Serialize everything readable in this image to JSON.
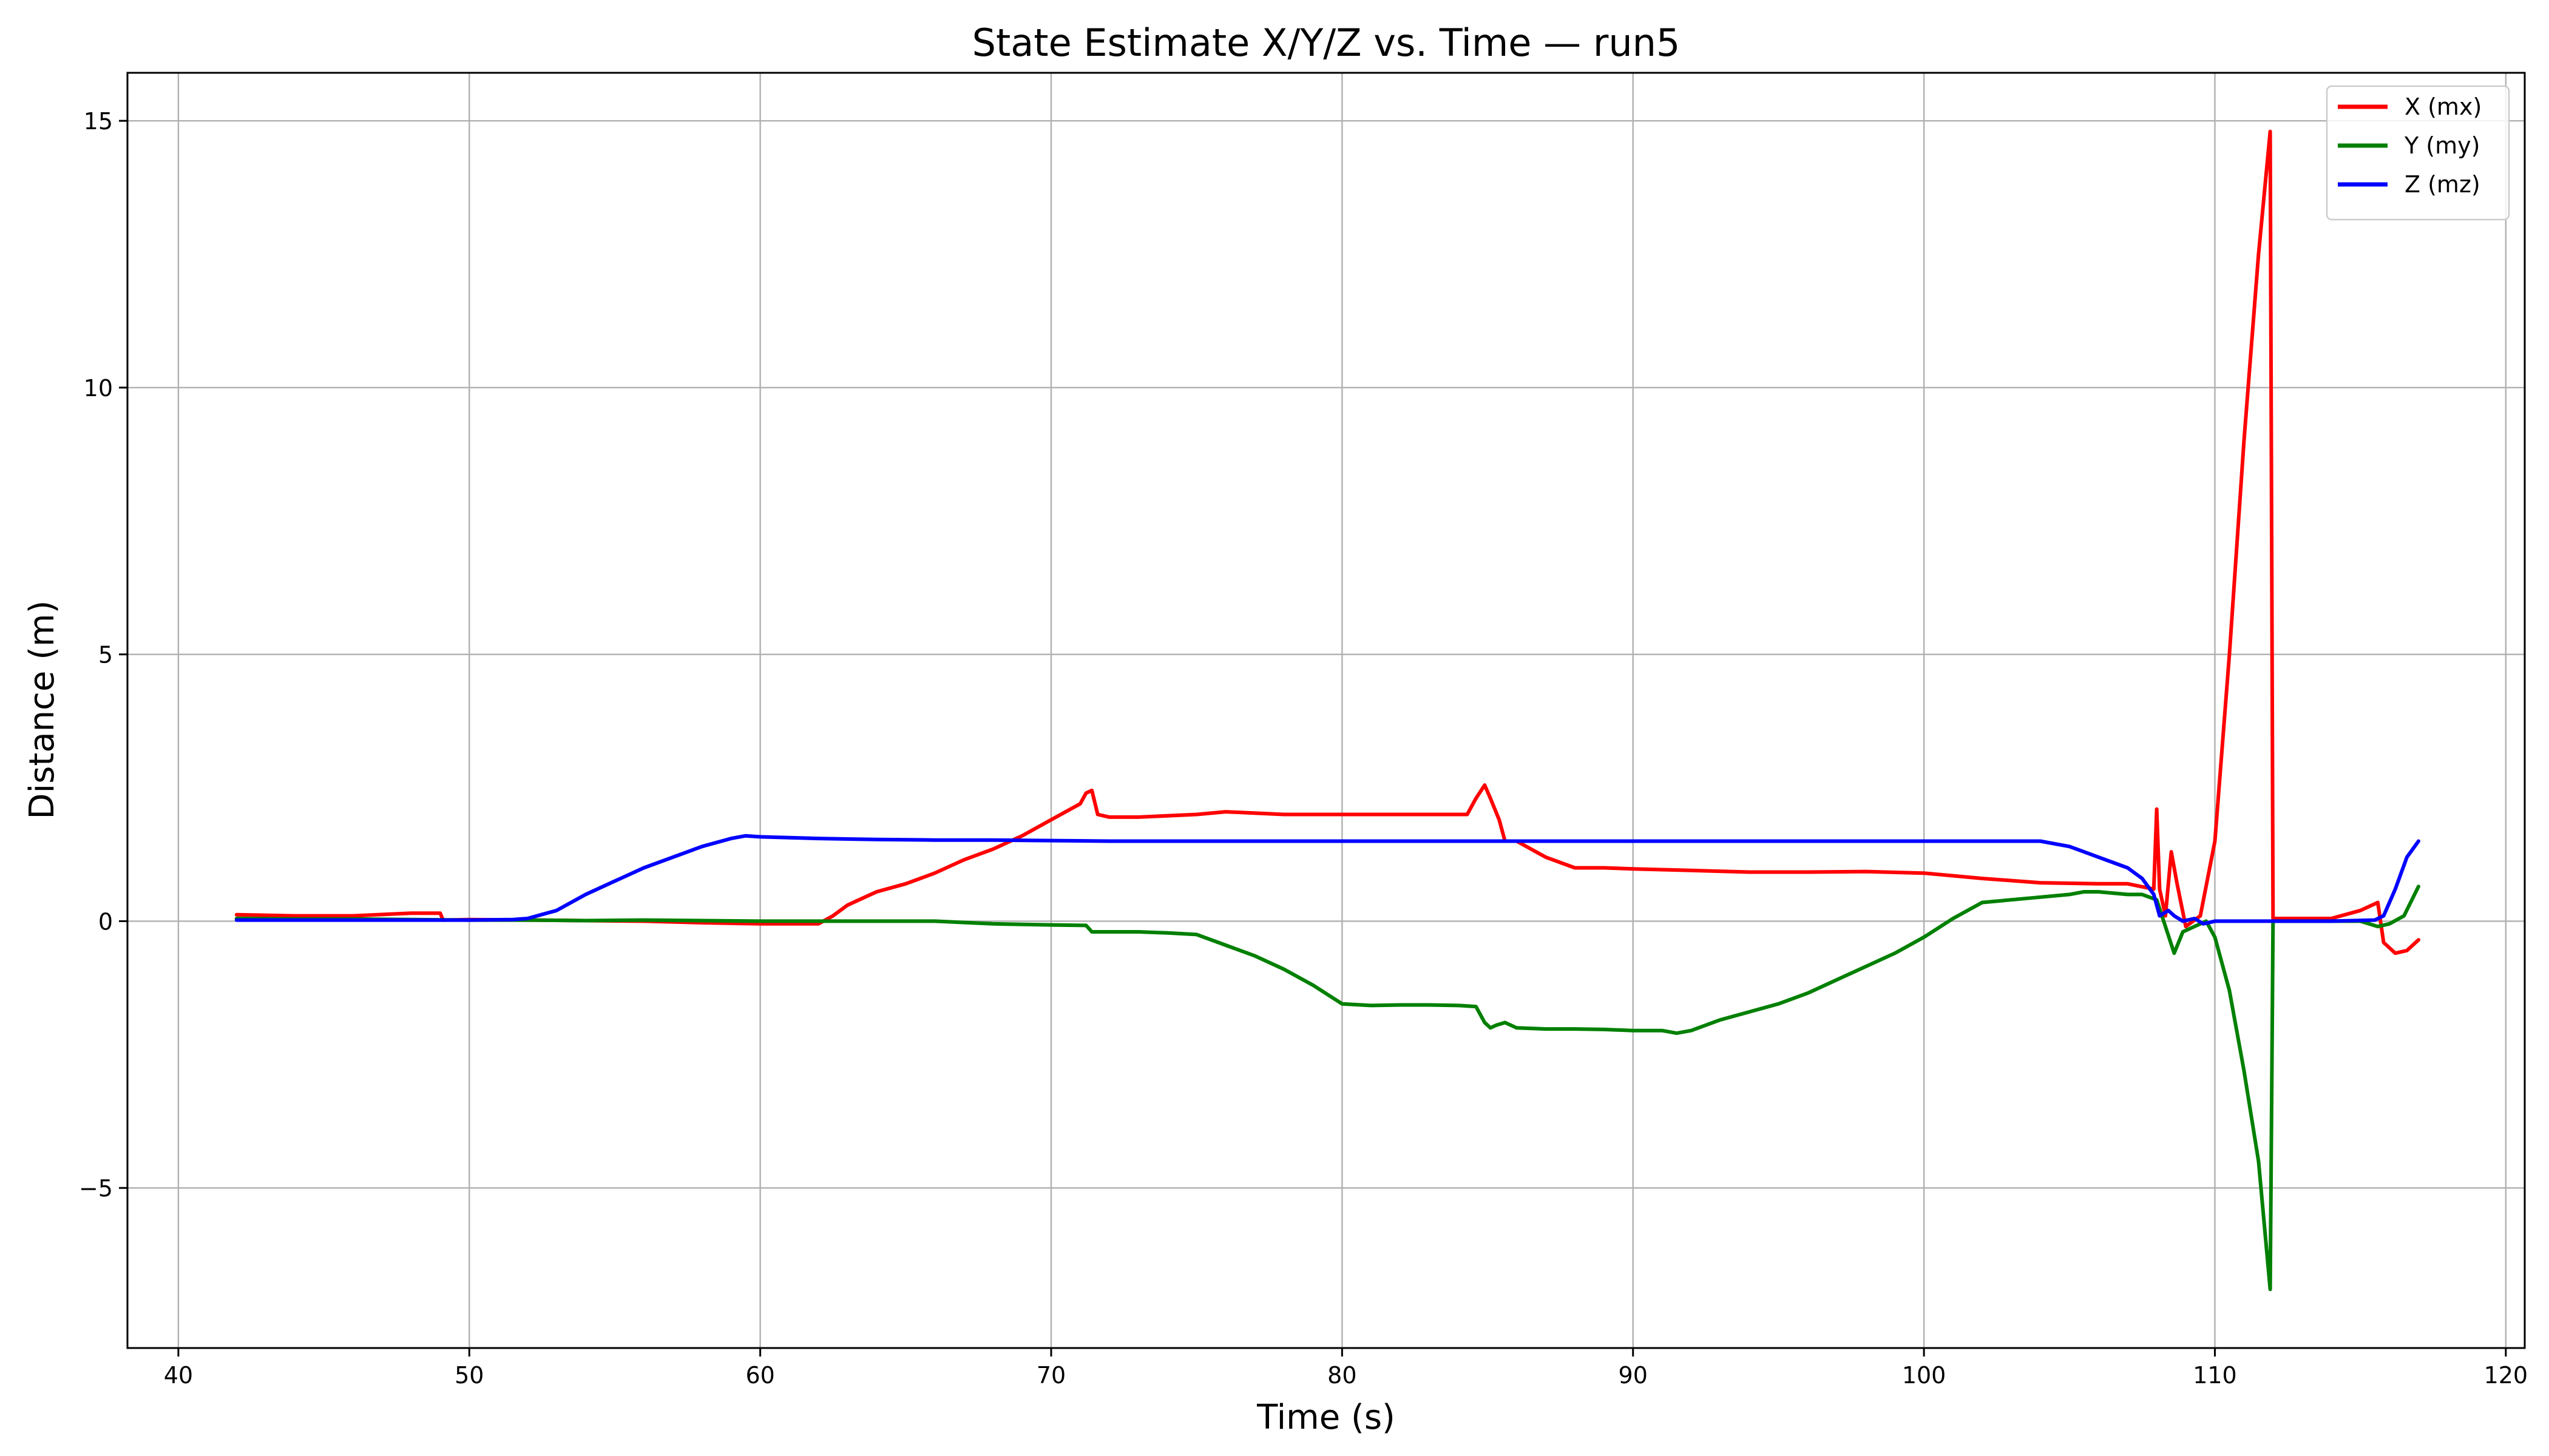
{
  "chart_data": {
    "type": "line",
    "title": "State Estimate X/Y/Z vs. Time — run5",
    "xlabel": "Time (s)",
    "ylabel": "Distance (m)",
    "xlim": [
      38.25,
      120.65
    ],
    "ylim": [
      -8.0,
      15.9
    ],
    "xticks": [
      40,
      50,
      60,
      70,
      80,
      90,
      100,
      110,
      120
    ],
    "yticks": [
      -5,
      0,
      5,
      10,
      15
    ],
    "ytick_labels": [
      "−5",
      "0",
      "5",
      "10",
      "15"
    ],
    "grid": true,
    "legend_position": "top-right",
    "series": [
      {
        "name": "X (mx)",
        "color": "#ff0000",
        "x": [
          42,
          44,
          46,
          48,
          49,
          49.1,
          50,
          52,
          54,
          56,
          58,
          60,
          62,
          62.5,
          63,
          64,
          65,
          66,
          67,
          68,
          69,
          70,
          71,
          71.2,
          71.4,
          71.6,
          72,
          73,
          75,
          76,
          78,
          80,
          82,
          84,
          84.3,
          84.6,
          84.9,
          85.1,
          85.4,
          85.6,
          86,
          87,
          88,
          89,
          90,
          92,
          94,
          96,
          98,
          100,
          102,
          104,
          106,
          107,
          107.9,
          108.0,
          108.1,
          108.3,
          108.5,
          108.7,
          109,
          109.5,
          110,
          110.5,
          111,
          111.5,
          111.9,
          112.0,
          113,
          114,
          115,
          115.6,
          115.8,
          116.2,
          116.6,
          117
        ],
        "values": [
          0.12,
          0.1,
          0.1,
          0.15,
          0.15,
          0.02,
          0.03,
          0.02,
          0.01,
          0.0,
          -0.03,
          -0.05,
          -0.05,
          0.1,
          0.3,
          0.55,
          0.7,
          0.9,
          1.15,
          1.35,
          1.6,
          1.9,
          2.2,
          2.4,
          2.45,
          2.0,
          1.95,
          1.95,
          2.0,
          2.05,
          2.0,
          2.0,
          2.0,
          2.0,
          2.0,
          2.3,
          2.55,
          2.3,
          1.9,
          1.5,
          1.5,
          1.2,
          1.0,
          1.0,
          0.98,
          0.95,
          0.92,
          0.92,
          0.93,
          0.9,
          0.8,
          0.72,
          0.7,
          0.7,
          0.6,
          2.1,
          0.6,
          0.1,
          1.3,
          0.7,
          -0.1,
          0.1,
          1.5,
          5.0,
          9.0,
          12.5,
          14.8,
          0.05,
          0.05,
          0.05,
          0.2,
          0.35,
          -0.4,
          -0.6,
          -0.55,
          -0.35
        ]
      },
      {
        "name": "Y (my)",
        "color": "#008000",
        "x": [
          42,
          44,
          46,
          48,
          50,
          52,
          54,
          56,
          58,
          60,
          62,
          64,
          66,
          68,
          70,
          71.2,
          71.4,
          72,
          73,
          74,
          75,
          76,
          77,
          78,
          79,
          80,
          81,
          82,
          83,
          84,
          84.6,
          84.9,
          85.1,
          85.3,
          85.6,
          86,
          87,
          88,
          89,
          90,
          91,
          91.5,
          92,
          93,
          94,
          95,
          96,
          97,
          98,
          99,
          100,
          101,
          102,
          103,
          104,
          105,
          105.5,
          106,
          107,
          107.5,
          108,
          108.3,
          108.6,
          108.9,
          109.3,
          109.7,
          110,
          110.5,
          111,
          111.5,
          111.9,
          112.0,
          113,
          114,
          115,
          115.6,
          116,
          116.5,
          117
        ],
        "values": [
          0.05,
          0.04,
          0.04,
          0.03,
          0.02,
          0.02,
          0.01,
          0.02,
          0.01,
          0.0,
          0.0,
          0.0,
          0.0,
          -0.05,
          -0.07,
          -0.08,
          -0.2,
          -0.2,
          -0.2,
          -0.22,
          -0.25,
          -0.45,
          -0.65,
          -0.9,
          -1.2,
          -1.55,
          -1.58,
          -1.57,
          -1.57,
          -1.58,
          -1.6,
          -1.9,
          -2.0,
          -1.95,
          -1.9,
          -2.0,
          -2.02,
          -2.02,
          -2.03,
          -2.05,
          -2.05,
          -2.1,
          -2.05,
          -1.85,
          -1.7,
          -1.55,
          -1.35,
          -1.1,
          -0.85,
          -0.6,
          -0.3,
          0.05,
          0.35,
          0.4,
          0.45,
          0.5,
          0.55,
          0.55,
          0.5,
          0.5,
          0.4,
          -0.1,
          -0.6,
          -0.2,
          -0.1,
          0.0,
          -0.3,
          -1.3,
          -2.8,
          -4.5,
          -6.9,
          0.0,
          0.0,
          0.0,
          0.0,
          -0.1,
          -0.05,
          0.1,
          0.65
        ]
      },
      {
        "name": "Z (mz)",
        "color": "#0000ff",
        "x": [
          42,
          44,
          46,
          48,
          50,
          51.5,
          52,
          53,
          54,
          55,
          56,
          57,
          58,
          59,
          59.5,
          60,
          62,
          64,
          66,
          68,
          70,
          72,
          74,
          76,
          78,
          80,
          82,
          84,
          86,
          88,
          90,
          92,
          94,
          96,
          98,
          100,
          102,
          104,
          105,
          106,
          107,
          107.5,
          107.9,
          108.1,
          108.4,
          108.6,
          108.9,
          109.3,
          109.6,
          110,
          112,
          114,
          115.5,
          115.8,
          116.2,
          116.6,
          117
        ],
        "values": [
          0.02,
          0.02,
          0.02,
          0.02,
          0.02,
          0.03,
          0.05,
          0.2,
          0.5,
          0.75,
          1.0,
          1.2,
          1.4,
          1.55,
          1.6,
          1.58,
          1.55,
          1.53,
          1.52,
          1.52,
          1.51,
          1.5,
          1.5,
          1.5,
          1.5,
          1.5,
          1.5,
          1.5,
          1.5,
          1.5,
          1.5,
          1.5,
          1.5,
          1.5,
          1.5,
          1.5,
          1.5,
          1.5,
          1.4,
          1.2,
          1.0,
          0.8,
          0.5,
          0.1,
          0.2,
          0.1,
          0.0,
          0.05,
          -0.05,
          0.0,
          0.0,
          0.0,
          0.02,
          0.1,
          0.6,
          1.2,
          1.5
        ]
      }
    ]
  }
}
